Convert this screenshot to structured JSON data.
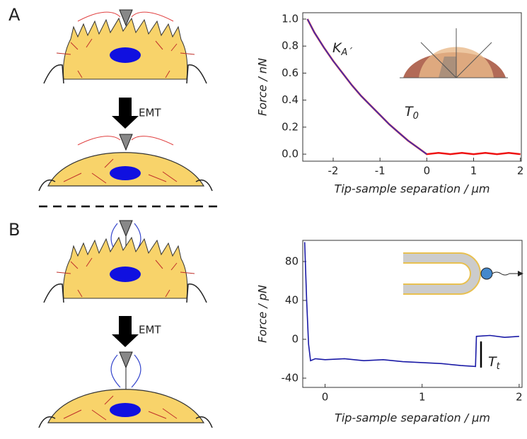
{
  "panel_labels": [
    "A",
    "B"
  ],
  "emt_labels": [
    "EMT",
    "EMT"
  ],
  "chart_data": [
    {
      "type": "line",
      "xlabel": "Tip-sample separation / µm",
      "ylabel": "Force / nN",
      "xlim": [
        -2.65,
        2.02
      ],
      "ylim": [
        -0.052,
        1.047
      ],
      "xticks": [
        -2,
        -1,
        0,
        1,
        2
      ],
      "yticks": [
        {
          "value": 0,
          "label": "0.0"
        },
        0.2,
        0.4,
        0.6,
        0.8,
        {
          "value": 1,
          "label": "1.0"
        }
      ],
      "annotations": [
        {
          "text": "K",
          "subscript": "A´"
        },
        {
          "text": "T",
          "subscript": "0"
        }
      ],
      "series": [
        {
          "color": "#ee1111",
          "x": [
            -2.55,
            -2.4,
            -2.2,
            -2.0,
            -1.8,
            -1.6,
            -1.4,
            -1.2,
            -1.0,
            -0.8,
            -0.6,
            -0.4,
            -0.2,
            0,
            0.25,
            0.5,
            0.75,
            1.0,
            1.25,
            1.5,
            1.75,
            2.0
          ],
          "values": [
            1.0,
            0.9,
            0.79,
            0.69,
            0.6,
            0.51,
            0.43,
            0.36,
            0.29,
            0.22,
            0.16,
            0.1,
            0.05,
            0,
            0.01,
            0,
            0.01,
            0,
            0.01,
            0,
            0.01,
            0
          ]
        },
        {
          "color": "#3333bb",
          "x": [
            -2.55,
            -2.4,
            -2.2,
            -2.0,
            -1.8,
            -1.6,
            -1.4,
            -1.2,
            -1.0,
            -0.8,
            -0.6,
            -0.4,
            -0.2,
            0
          ],
          "values": [
            1.0,
            0.9,
            0.79,
            0.69,
            0.6,
            0.51,
            0.43,
            0.36,
            0.29,
            0.22,
            0.16,
            0.1,
            0.05,
            0
          ]
        }
      ]
    },
    {
      "type": "line",
      "xlabel": "Tip-sample separation / µm",
      "ylabel": "Force / pN",
      "xlim": [
        -0.23,
        2.03
      ],
      "ylim": [
        -49.5,
        101.8
      ],
      "xticks": [
        0,
        1,
        2
      ],
      "yticks": [
        -40,
        0,
        40,
        80
      ],
      "annotations": [
        {
          "text": "T",
          "subscript": "t"
        }
      ],
      "series": [
        {
          "color": "#1a1aa6",
          "x": [
            -0.21,
            -0.19,
            -0.17,
            -0.15,
            -0.1,
            0,
            0.2,
            0.4,
            0.6,
            0.8,
            1.0,
            1.2,
            1.4,
            1.55,
            1.56,
            1.7,
            1.85,
            2.0
          ],
          "values": [
            100,
            40,
            -5,
            -22,
            -20,
            -21,
            -20,
            -22,
            -21,
            -23,
            -24,
            -25,
            -27,
            -28,
            3,
            4,
            2,
            3
          ]
        }
      ]
    }
  ]
}
